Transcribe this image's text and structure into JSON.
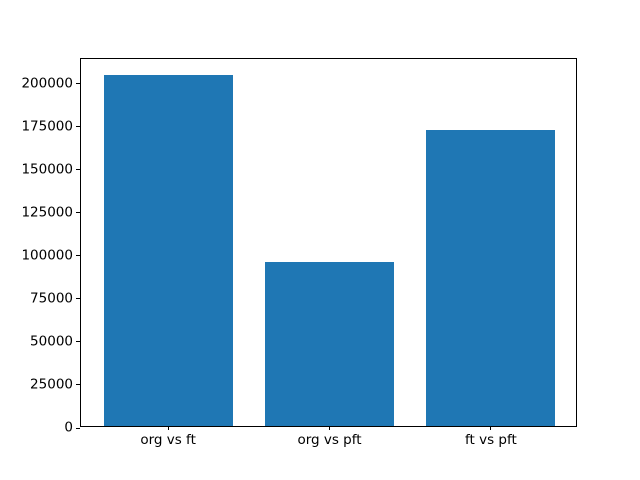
{
  "chart_data": {
    "type": "bar",
    "categories": [
      "org vs ft",
      "org vs pft",
      "ft vs pft"
    ],
    "values": [
      204000,
      95000,
      172000
    ],
    "title": "",
    "xlabel": "",
    "ylabel": "",
    "ylim": [
      0,
      214200
    ],
    "xlim": [
      -0.54,
      2.54
    ],
    "yticks": [
      0,
      25000,
      50000,
      75000,
      100000,
      125000,
      150000,
      175000,
      200000
    ],
    "bar_width": 0.8,
    "bar_color": "#1f77b4",
    "axis_color": "#000000",
    "background_color": "#ffffff",
    "grid": false,
    "legend": null
  }
}
